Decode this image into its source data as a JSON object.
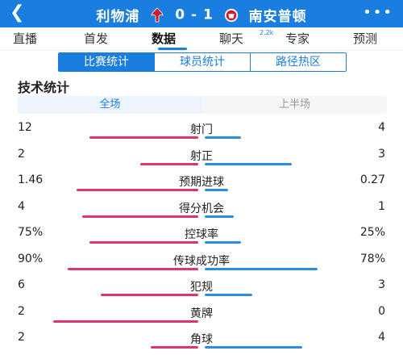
{
  "header": {
    "back_icon": "back-arrow-icon",
    "home_team": "利物浦",
    "score": "0 - 1",
    "away_team": "南安普顿",
    "more_icon": "more-icon"
  },
  "tabs": [
    {
      "label": "直播"
    },
    {
      "label": "首发"
    },
    {
      "label": "数据"
    },
    {
      "label": "聊天"
    },
    {
      "label": "专家"
    },
    {
      "label": "预测"
    }
  ],
  "chat_count": "2.2k",
  "segments": [
    "比赛统计",
    "球员统计",
    "路径热区"
  ],
  "section_title": "技术统计",
  "halves": [
    "全场",
    "上半场"
  ],
  "stats": [
    {
      "label": "射门",
      "left": "12",
      "right": "4",
      "lf": 0.75,
      "rf": 0.25
    },
    {
      "label": "射正",
      "left": "2",
      "right": "3",
      "lf": 0.4,
      "rf": 0.6
    },
    {
      "label": "预期进球",
      "left": "1.46",
      "right": "0.27",
      "lf": 0.84,
      "rf": 0.16
    },
    {
      "label": "得分机会",
      "left": "4",
      "right": "1",
      "lf": 0.8,
      "rf": 0.2
    },
    {
      "label": "控球率",
      "left": "75%",
      "right": "25%",
      "lf": 0.75,
      "rf": 0.25
    },
    {
      "label": "传球成功率",
      "left": "90%",
      "right": "78%",
      "lf": 0.9,
      "rf": 0.78
    },
    {
      "label": "犯规",
      "left": "6",
      "right": "3",
      "lf": 0.67,
      "rf": 0.33
    },
    {
      "label": "黄牌",
      "left": "2",
      "right": "0",
      "lf": 1.0,
      "rf": 0.0
    },
    {
      "label": "角球",
      "left": "2",
      "right": "4",
      "lf": 0.33,
      "rf": 0.67
    }
  ],
  "colors": {
    "primary": "#1a7de0",
    "home_bar": "#e0356b",
    "away_bar": "#2c8de6"
  }
}
